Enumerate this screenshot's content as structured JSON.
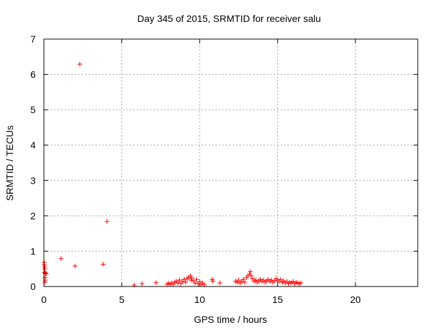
{
  "chart_data": {
    "type": "scatter",
    "title": "Day 345 of 2015, SRMTID for receiver salu",
    "xlabel": "GPS time / hours",
    "ylabel": "SRMTID / TECUs",
    "xlim": [
      0,
      24
    ],
    "ylim": [
      0,
      7
    ],
    "xticks": [
      0,
      5,
      10,
      15,
      20
    ],
    "yticks": [
      0,
      1,
      2,
      3,
      4,
      5,
      6,
      7
    ],
    "xtick_labels": [
      "0",
      "5",
      "10",
      "15",
      "20"
    ],
    "ytick_labels": [
      "0",
      "1",
      "2",
      "3",
      "4",
      "5",
      "6",
      "7"
    ],
    "grid": true,
    "marker": "+",
    "color": "#ff0000",
    "series": [
      {
        "name": "SRMTID",
        "points": [
          [
            0.02,
            0.68
          ],
          [
            0.03,
            0.62
          ],
          [
            0.05,
            0.56
          ],
          [
            0.06,
            0.5
          ],
          [
            0.04,
            0.4
          ],
          [
            0.1,
            0.38
          ],
          [
            0.15,
            0.36
          ],
          [
            0.08,
            0.25
          ],
          [
            0.09,
            0.18
          ],
          [
            0.07,
            0.12
          ],
          [
            1.1,
            0.79
          ],
          [
            2.0,
            0.58
          ],
          [
            2.3,
            6.29
          ],
          [
            3.8,
            0.63
          ],
          [
            4.05,
            1.84
          ],
          [
            5.8,
            0.04
          ],
          [
            6.3,
            0.08
          ],
          [
            7.2,
            0.11
          ],
          [
            7.9,
            0.06
          ],
          [
            8.0,
            0.09
          ],
          [
            8.1,
            0.07
          ],
          [
            8.2,
            0.1
          ],
          [
            8.3,
            0.06
          ],
          [
            8.4,
            0.12
          ],
          [
            8.5,
            0.15
          ],
          [
            8.6,
            0.1
          ],
          [
            8.7,
            0.18
          ],
          [
            8.8,
            0.08
          ],
          [
            8.9,
            0.14
          ],
          [
            9.0,
            0.2
          ],
          [
            9.1,
            0.12
          ],
          [
            9.2,
            0.22
          ],
          [
            9.3,
            0.26
          ],
          [
            9.4,
            0.3
          ],
          [
            9.45,
            0.18
          ],
          [
            9.5,
            0.24
          ],
          [
            9.6,
            0.16
          ],
          [
            9.7,
            0.1
          ],
          [
            9.8,
            0.2
          ],
          [
            9.9,
            0.08
          ],
          [
            10.0,
            0.14
          ],
          [
            10.1,
            0.06
          ],
          [
            10.2,
            0.1
          ],
          [
            10.3,
            0.05
          ],
          [
            10.8,
            0.2
          ],
          [
            10.85,
            0.15
          ],
          [
            11.3,
            0.1
          ],
          [
            12.3,
            0.15
          ],
          [
            12.4,
            0.12
          ],
          [
            12.5,
            0.18
          ],
          [
            12.6,
            0.1
          ],
          [
            12.7,
            0.14
          ],
          [
            12.8,
            0.2
          ],
          [
            12.9,
            0.12
          ],
          [
            13.0,
            0.25
          ],
          [
            13.1,
            0.3
          ],
          [
            13.2,
            0.35
          ],
          [
            13.25,
            0.42
          ],
          [
            13.3,
            0.3
          ],
          [
            13.4,
            0.22
          ],
          [
            13.5,
            0.15
          ],
          [
            13.6,
            0.18
          ],
          [
            13.7,
            0.12
          ],
          [
            13.8,
            0.16
          ],
          [
            13.9,
            0.2
          ],
          [
            14.0,
            0.14
          ],
          [
            14.1,
            0.18
          ],
          [
            14.2,
            0.12
          ],
          [
            14.3,
            0.16
          ],
          [
            14.4,
            0.2
          ],
          [
            14.5,
            0.14
          ],
          [
            14.6,
            0.18
          ],
          [
            14.7,
            0.12
          ],
          [
            14.8,
            0.16
          ],
          [
            14.9,
            0.22
          ],
          [
            15.0,
            0.18
          ],
          [
            15.1,
            0.14
          ],
          [
            15.2,
            0.2
          ],
          [
            15.3,
            0.12
          ],
          [
            15.4,
            0.16
          ],
          [
            15.5,
            0.1
          ],
          [
            15.6,
            0.14
          ],
          [
            15.7,
            0.08
          ],
          [
            15.8,
            0.12
          ],
          [
            15.9,
            0.1
          ],
          [
            16.0,
            0.14
          ],
          [
            16.1,
            0.08
          ],
          [
            16.2,
            0.12
          ],
          [
            16.3,
            0.1
          ],
          [
            16.4,
            0.08
          ],
          [
            16.5,
            0.1
          ]
        ]
      }
    ]
  }
}
